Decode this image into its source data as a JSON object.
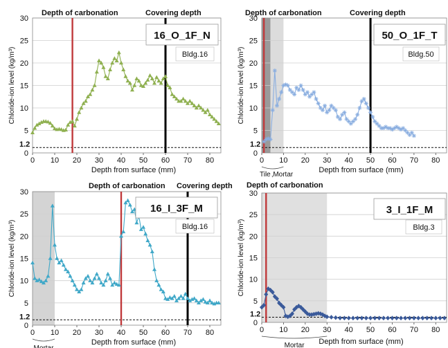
{
  "chart_data": [
    {
      "type": "line",
      "panel_label": "16_O_1F_N",
      "building": "Bldg.16",
      "xlabel": "Depth from surface (mm)",
      "ylabel": "Chloride-ion level (kg/m³)",
      "xlim": [
        0,
        85
      ],
      "ylim": [
        0,
        30
      ],
      "xticks": [
        0,
        10,
        20,
        30,
        40,
        50,
        60,
        70,
        80
      ],
      "yticks": [
        0,
        5,
        10,
        15,
        20,
        25,
        30
      ],
      "threshold": 1.2,
      "threshold_label": "1.2",
      "carbonation_depth": 18,
      "carbonation_label": "Depth of carbonation",
      "covering_depth": 60,
      "covering_label": "Covering depth",
      "shaded": [],
      "region_labels": [],
      "color": "#8fb050",
      "marker": "triangle",
      "x": [
        0,
        1,
        2,
        3,
        4,
        5,
        6,
        7,
        8,
        9,
        10,
        11,
        12,
        13,
        14,
        15,
        16,
        17,
        18,
        19,
        20,
        21,
        22,
        23,
        24,
        25,
        26,
        27,
        28,
        29,
        30,
        31,
        32,
        33,
        34,
        35,
        36,
        37,
        38,
        39,
        40,
        41,
        42,
        43,
        44,
        45,
        46,
        47,
        48,
        49,
        50,
        51,
        52,
        53,
        54,
        55,
        56,
        57,
        58,
        59,
        60,
        61,
        62,
        63,
        64,
        65,
        66,
        67,
        68,
        69,
        70,
        71,
        72,
        73,
        74,
        75,
        76,
        77,
        78,
        79,
        80,
        81,
        82,
        83,
        84
      ],
      "y": [
        4.5,
        5.5,
        6.2,
        6.5,
        6.8,
        7.0,
        7.0,
        6.9,
        6.6,
        6.0,
        5.4,
        5.2,
        5.3,
        5.2,
        5.0,
        5.1,
        6.2,
        6.8,
        7.0,
        6.0,
        7.5,
        9.0,
        10.0,
        11.0,
        11.5,
        12.5,
        13.0,
        14.0,
        15.0,
        18.0,
        20.5,
        20.0,
        19.0,
        17.0,
        16.5,
        18.5,
        20.0,
        21.0,
        20.5,
        22.3,
        20.0,
        18.5,
        17.0,
        16.0,
        15.5,
        14.0,
        15.0,
        16.5,
        16.0,
        15.0,
        14.8,
        15.5,
        16.2,
        17.2,
        16.5,
        15.5,
        16.8,
        16.0,
        15.5,
        16.5,
        17.0,
        15.0,
        14.5,
        13.0,
        12.5,
        12.0,
        11.5,
        11.5,
        12.0,
        11.5,
        11.0,
        11.5,
        11.0,
        10.5,
        10.0,
        10.5,
        10.0,
        9.5,
        9.0,
        9.5,
        8.5,
        8.0,
        7.5,
        7.0,
        6.5
      ]
    },
    {
      "type": "line",
      "panel_label": "50_O_1F_T",
      "building": "Bldg.50",
      "xlabel": "Depth from surface (mm)",
      "ylabel": "Chloride-ion level (kg/m³)",
      "xlim": [
        0,
        85
      ],
      "ylim": [
        0,
        30
      ],
      "xticks": [
        0,
        10,
        20,
        30,
        40,
        50,
        60,
        70,
        80
      ],
      "yticks": [
        0,
        5,
        10,
        15,
        20,
        25,
        30
      ],
      "threshold": 1.2,
      "threshold_label": "1.2",
      "carbonation_depth": 1,
      "carbonation_label": "Depth of carbonation",
      "covering_depth": 50,
      "covering_label": "Covering depth",
      "shaded": [
        [
          0,
          4,
          "#9a9a9a"
        ],
        [
          4,
          10,
          "#dcdcdc"
        ]
      ],
      "region_labels": [
        "Tile",
        "Mortar"
      ],
      "color": "#8aaee0",
      "marker": "star",
      "x": [
        1,
        2,
        3,
        4,
        5,
        6,
        7,
        8,
        9,
        10,
        11,
        12,
        13,
        14,
        15,
        16,
        17,
        18,
        19,
        20,
        21,
        22,
        23,
        24,
        25,
        26,
        27,
        28,
        29,
        30,
        31,
        32,
        33,
        34,
        35,
        36,
        37,
        38,
        39,
        40,
        41,
        42,
        43,
        44,
        45,
        46,
        47,
        48,
        49,
        50,
        51,
        52,
        53,
        54,
        55,
        56,
        57,
        58,
        59,
        60,
        61,
        62,
        63,
        64,
        65,
        66,
        67,
        68,
        69,
        70
      ],
      "y": [
        2.5,
        3.0,
        3.2,
        3.0,
        9.5,
        18.3,
        10.5,
        12.0,
        13.5,
        15.0,
        15.2,
        15.0,
        14.0,
        13.5,
        13.0,
        14.5,
        14.0,
        15.0,
        14.0,
        13.0,
        13.5,
        12.5,
        13.0,
        13.5,
        12.0,
        11.0,
        10.0,
        9.5,
        10.5,
        9.0,
        9.5,
        10.5,
        10.0,
        9.5,
        8.0,
        7.5,
        8.5,
        9.0,
        7.5,
        7.0,
        6.5,
        7.0,
        7.5,
        8.5,
        10.0,
        11.5,
        12.0,
        11.0,
        10.0,
        9.0,
        8.0,
        7.0,
        6.5,
        6.0,
        5.5,
        5.5,
        5.8,
        5.5,
        5.5,
        5.2,
        5.5,
        5.8,
        5.5,
        5.2,
        5.5,
        5.0,
        4.5,
        4.0,
        4.5,
        3.8
      ]
    },
    {
      "type": "line",
      "panel_label": "16_I_3F_M",
      "building": "Bldg.16",
      "xlabel": "Depth from surface (mm)",
      "ylabel": "Chloride-ion level (kg/m³)",
      "xlim": [
        0,
        85
      ],
      "ylim": [
        0,
        30
      ],
      "xticks": [
        0,
        10,
        20,
        30,
        40,
        50,
        60,
        70,
        80
      ],
      "yticks": [
        0,
        5,
        10,
        15,
        20,
        25,
        30
      ],
      "threshold": 1.2,
      "threshold_label": "1.2",
      "carbonation_depth": 40,
      "carbonation_label": "Depth of carbonation",
      "covering_depth": 70,
      "covering_label": "Covering depth",
      "shaded": [
        [
          0,
          10,
          "#d4d4d4"
        ]
      ],
      "region_labels": [
        "Mortar"
      ],
      "color": "#40a8c8",
      "marker": "triangle",
      "x": [
        0,
        1,
        2,
        3,
        4,
        5,
        6,
        7,
        8,
        9,
        10,
        11,
        12,
        13,
        14,
        15,
        16,
        17,
        18,
        19,
        20,
        21,
        22,
        23,
        24,
        25,
        26,
        27,
        28,
        29,
        30,
        31,
        32,
        33,
        34,
        35,
        36,
        37,
        38,
        39,
        40,
        41,
        42,
        43,
        44,
        45,
        46,
        47,
        48,
        49,
        50,
        51,
        52,
        53,
        54,
        55,
        56,
        57,
        58,
        59,
        60,
        61,
        62,
        63,
        64,
        65,
        66,
        67,
        68,
        69,
        70,
        71,
        72,
        73,
        74,
        75,
        76,
        77,
        78,
        79,
        80,
        81,
        82,
        83,
        84
      ],
      "y": [
        14.0,
        10.5,
        10.0,
        10.2,
        9.8,
        9.5,
        10.0,
        11.0,
        15.0,
        26.8,
        18.0,
        15.0,
        14.0,
        14.5,
        13.5,
        12.5,
        12.0,
        11.0,
        10.0,
        9.0,
        8.0,
        7.5,
        8.0,
        9.5,
        10.5,
        11.0,
        10.0,
        9.5,
        10.5,
        11.5,
        10.5,
        9.5,
        9.0,
        10.0,
        11.5,
        10.5,
        9.0,
        9.5,
        9.2,
        9.0,
        20.0,
        21.0,
        27.5,
        28.0,
        27.0,
        25.5,
        26.0,
        23.0,
        24.5,
        21.5,
        22.0,
        20.5,
        19.0,
        18.0,
        16.5,
        12.5,
        10.0,
        9.0,
        8.0,
        7.5,
        6.0,
        5.8,
        6.2,
        6.0,
        6.5,
        5.5,
        6.0,
        6.5,
        6.0,
        7.0,
        6.0,
        5.5,
        5.8,
        6.0,
        5.5,
        5.0,
        5.5,
        5.8,
        5.2,
        5.0,
        5.5,
        5.0,
        4.8,
        5.0,
        5.0
      ]
    },
    {
      "type": "line",
      "panel_label": "3_I_1F_M",
      "building": "Bldg.3",
      "xlabel": "Depth from surface (mm)",
      "ylabel": "Chloride-ion level (kg/m³)",
      "xlim": [
        0,
        85
      ],
      "ylim": [
        0,
        30
      ],
      "xticks": [
        0,
        10,
        20,
        30,
        40,
        50,
        60,
        70,
        80
      ],
      "yticks": [
        0,
        5,
        10,
        15,
        20,
        25,
        30
      ],
      "threshold": 1.2,
      "threshold_label": "1.2",
      "carbonation_depth": 2,
      "carbonation_label": "Depth of carbonation",
      "covering_depth": null,
      "covering_label": "",
      "shaded": [
        [
          0,
          30,
          "#e0e0e0"
        ]
      ],
      "region_labels": [
        "Mortar"
      ],
      "color": "#3a5a9a",
      "marker": "diamond",
      "x": [
        0,
        1,
        2,
        3,
        4,
        5,
        6,
        7,
        8,
        9,
        10,
        11,
        12,
        13,
        14,
        15,
        16,
        17,
        18,
        19,
        20,
        21,
        22,
        23,
        24,
        25,
        26,
        27,
        28,
        29,
        30,
        32,
        34,
        36,
        38,
        40,
        42,
        44,
        46,
        48,
        50,
        52,
        54,
        56,
        58,
        60,
        62,
        64,
        66,
        68,
        70,
        72,
        74,
        76,
        78,
        80,
        82,
        84
      ],
      "y": [
        3.5,
        4.0,
        6.5,
        7.8,
        7.5,
        7.0,
        6.0,
        5.5,
        4.5,
        4.0,
        3.5,
        1.5,
        1.3,
        1.5,
        2.0,
        3.0,
        3.5,
        3.8,
        3.5,
        3.0,
        2.5,
        2.0,
        1.8,
        1.8,
        1.9,
        2.0,
        2.1,
        2.0,
        1.8,
        1.5,
        1.3,
        1.2,
        1.1,
        1.0,
        1.0,
        1.0,
        1.0,
        1.0,
        1.0,
        1.0,
        1.0,
        1.0,
        1.0,
        1.0,
        1.0,
        1.0,
        1.0,
        1.0,
        1.0,
        1.0,
        1.0,
        1.0,
        1.0,
        1.0,
        1.0,
        1.0,
        1.0,
        1.0
      ]
    }
  ]
}
